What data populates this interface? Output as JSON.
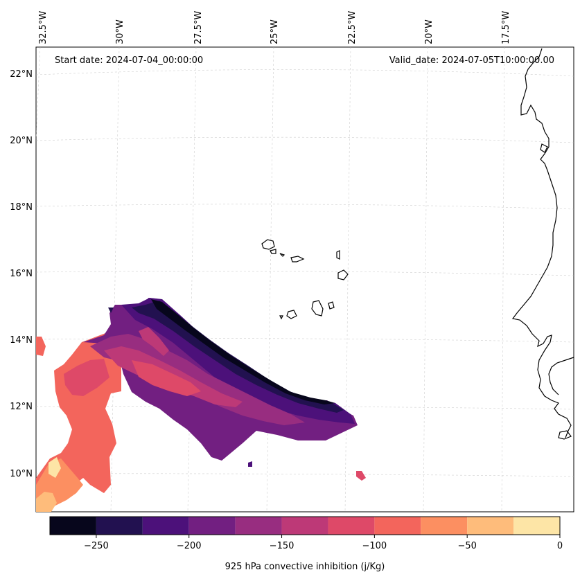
{
  "header": {
    "start_date": "Start date: 2024-07-04_00:00:00",
    "valid_date": "Valid_date: 2024-07-05T10:00:00.00"
  },
  "axes": {
    "longitude_labels": [
      "32.5°W",
      "30°W",
      "27.5°W",
      "25°W",
      "22.5°W",
      "20°W",
      "17.5°W"
    ],
    "latitude_labels": [
      "22°N",
      "20°N",
      "18°N",
      "16°N",
      "14°N",
      "12°N",
      "10°N"
    ]
  },
  "colorbar": {
    "label": "925 hPa convective inhibition (j/Kg)",
    "ticks": [
      "−250",
      "−200",
      "−150",
      "−100",
      "−50",
      "0"
    ],
    "levels": [
      -275,
      -250,
      -225,
      -200,
      -175,
      -150,
      -125,
      -100,
      -75,
      -50,
      -25,
      0
    ],
    "colors": [
      "#07061c",
      "#221150",
      "#4c117a",
      "#721f81",
      "#982d80",
      "#bd3977",
      "#de4968",
      "#f3655c",
      "#fc8f61",
      "#febc7b",
      "#fde5a6"
    ]
  }
}
